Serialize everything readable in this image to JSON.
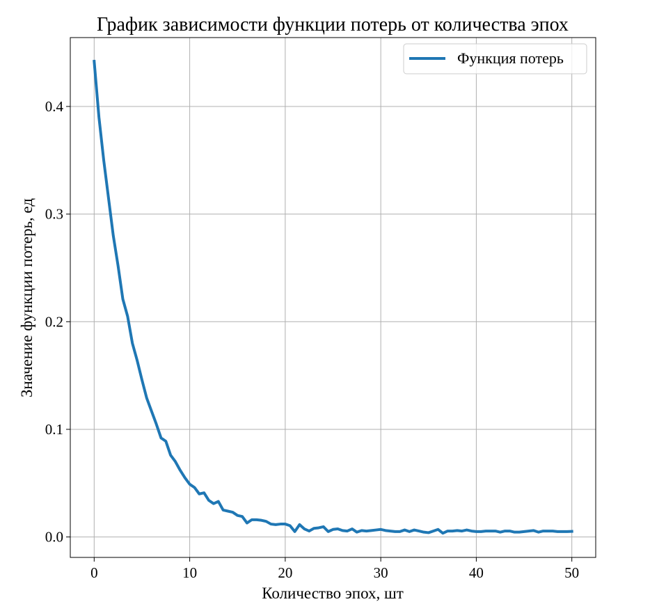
{
  "chart_data": {
    "type": "line",
    "title": "График зависимости функции потерь от количества эпох",
    "xlabel": "Количество эпох, шт",
    "ylabel": "Значение функции потерь, ед",
    "xlim": [
      -2.5,
      52.5
    ],
    "ylim": [
      -0.019,
      0.464
    ],
    "xticks": [
      0,
      10,
      20,
      30,
      40,
      50
    ],
    "xtick_labels": [
      "0",
      "10",
      "20",
      "30",
      "40",
      "50"
    ],
    "yticks": [
      0.0,
      0.1,
      0.2,
      0.3,
      0.4
    ],
    "ytick_labels": [
      "0.0",
      "0.1",
      "0.2",
      "0.3",
      "0.4"
    ],
    "grid": true,
    "legend_position": "top-right",
    "series": [
      {
        "name": "Функция потерь",
        "color": "#1f77b4",
        "x": [
          0,
          0.5,
          1,
          1.5,
          2,
          2.5,
          3,
          3.5,
          4,
          4.5,
          5,
          5.5,
          6,
          6.5,
          7,
          7.5,
          8,
          8.5,
          9,
          9.5,
          10,
          10.5,
          11,
          11.5,
          12,
          12.5,
          13,
          13.5,
          14,
          14.5,
          15,
          15.5,
          16,
          16.5,
          17,
          17.5,
          18,
          18.5,
          19,
          19.5,
          20,
          20.5,
          21,
          21.5,
          22,
          22.5,
          23,
          23.5,
          24,
          24.5,
          25,
          25.5,
          26,
          26.5,
          27,
          27.5,
          28,
          28.5,
          29,
          29.5,
          30,
          30.5,
          31,
          31.5,
          32,
          32.5,
          33,
          33.5,
          34,
          34.5,
          35,
          35.5,
          36,
          36.5,
          37,
          37.5,
          38,
          38.5,
          39,
          39.5,
          40,
          40.5,
          41,
          41.5,
          42,
          42.5,
          43,
          43.5,
          44,
          44.5,
          45,
          45.5,
          46,
          46.5,
          47,
          47.5,
          48,
          48.5,
          49,
          49.5,
          50
        ],
        "y": [
          0.442,
          0.39,
          0.35,
          0.315,
          0.28,
          0.252,
          0.221,
          0.205,
          0.18,
          0.164,
          0.146,
          0.129,
          0.117,
          0.105,
          0.092,
          0.089,
          0.076,
          0.07,
          0.062,
          0.055,
          0.049,
          0.046,
          0.04,
          0.041,
          0.034,
          0.031,
          0.033,
          0.025,
          0.024,
          0.023,
          0.02,
          0.019,
          0.013,
          0.016,
          0.016,
          0.0155,
          0.0145,
          0.012,
          0.0115,
          0.012,
          0.012,
          0.0105,
          0.005,
          0.0115,
          0.0075,
          0.0055,
          0.008,
          0.0085,
          0.0095,
          0.005,
          0.007,
          0.0075,
          0.006,
          0.0055,
          0.0075,
          0.0045,
          0.006,
          0.0055,
          0.006,
          0.0065,
          0.007,
          0.006,
          0.0055,
          0.005,
          0.005,
          0.0065,
          0.005,
          0.0065,
          0.0055,
          0.0045,
          0.004,
          0.0055,
          0.007,
          0.0035,
          0.0055,
          0.0055,
          0.006,
          0.0055,
          0.0065,
          0.0055,
          0.005,
          0.005,
          0.0055,
          0.0055,
          0.0055,
          0.0045,
          0.0055,
          0.0055,
          0.0045,
          0.0045,
          0.005,
          0.0055,
          0.006,
          0.0045,
          0.0055,
          0.0055,
          0.0055,
          0.005,
          0.005,
          0.005,
          0.0052
        ]
      }
    ]
  }
}
